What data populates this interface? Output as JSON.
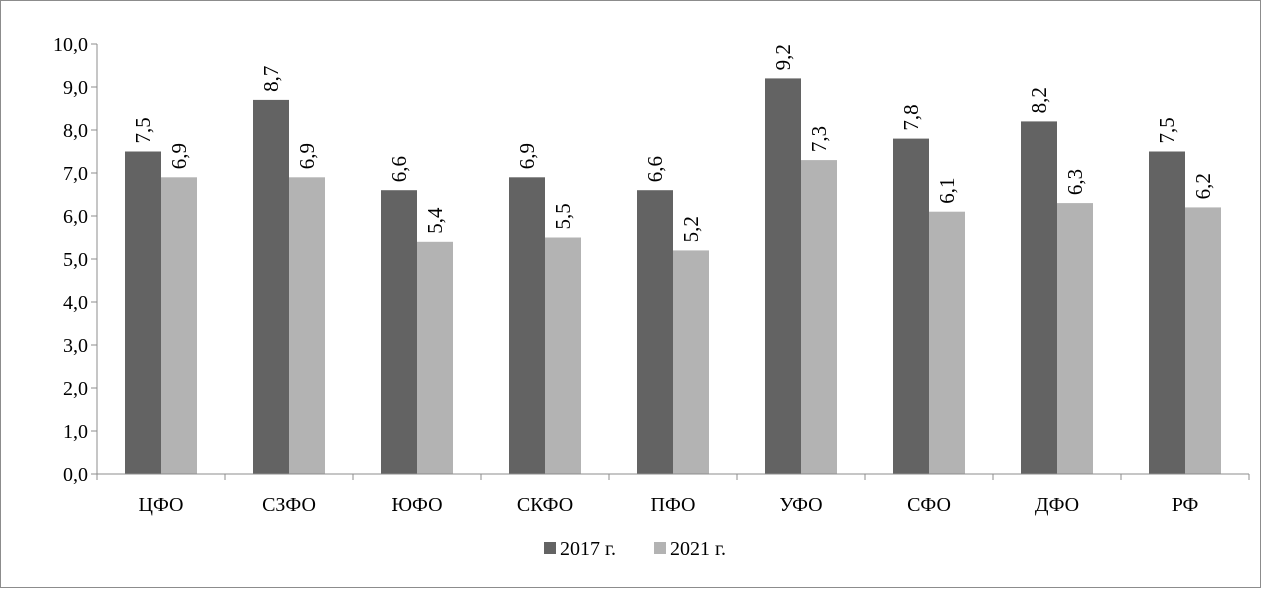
{
  "chart_data": {
    "type": "bar",
    "title": "",
    "xlabel": "",
    "ylabel": "",
    "categories": [
      "ЦФО",
      "СЗФО",
      "ЮФО",
      "СКФО",
      "ПФО",
      "УФО",
      "СФО",
      "ДФО",
      "РФ"
    ],
    "series": [
      {
        "name": "2017 г.",
        "color": "#636363",
        "values": [
          7.5,
          8.7,
          6.6,
          6.9,
          6.6,
          9.2,
          7.8,
          8.2,
          7.5
        ],
        "labels": [
          "7,5",
          "8,7",
          "6,6",
          "6,9",
          "6,6",
          "9,2",
          "7,8",
          "8,2",
          "7,5"
        ]
      },
      {
        "name": "2021 г.",
        "color": "#b3b3b3",
        "values": [
          6.9,
          6.9,
          5.4,
          5.5,
          5.2,
          7.3,
          6.1,
          6.3,
          6.2
        ],
        "labels": [
          "6,9",
          "6,9",
          "5,4",
          "5,5",
          "5,2",
          "7,3",
          "6,1",
          "6,3",
          "6,2"
        ]
      }
    ],
    "ylim": [
      0,
      10
    ],
    "yticks": [
      "0,0",
      "1,0",
      "2,0",
      "3,0",
      "4,0",
      "5,0",
      "6,0",
      "7,0",
      "8,0",
      "9,0",
      "10,0"
    ],
    "grid": false,
    "legend_position": "bottom"
  }
}
